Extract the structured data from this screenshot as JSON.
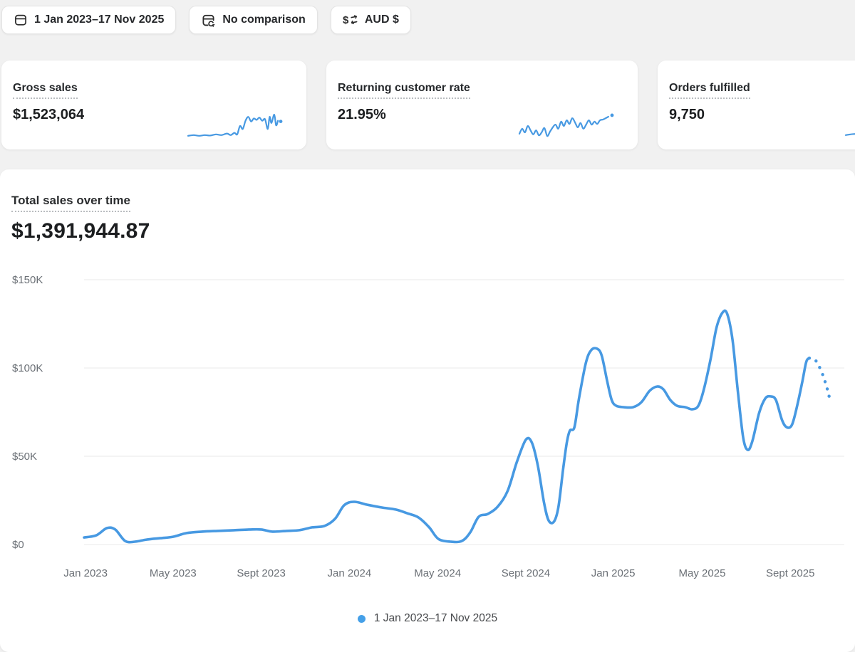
{
  "topbar": {
    "date_range_label": "1 Jan 2023–17 Nov 2025",
    "comparison_label": "No comparison",
    "currency_label": "AUD $",
    "icons": [
      "calendar-icon",
      "comparison-calendar-icon",
      "currency-convert-icon"
    ]
  },
  "metric_cards": [
    {
      "title": "Gross sales",
      "value": "$1,523,064",
      "spark": {
        "color": "#4799E2",
        "points": [
          [
            0.0,
            0.07
          ],
          [
            0.06,
            0.1
          ],
          [
            0.12,
            0.07
          ],
          [
            0.18,
            0.1
          ],
          [
            0.24,
            0.08
          ],
          [
            0.3,
            0.13
          ],
          [
            0.36,
            0.1
          ],
          [
            0.42,
            0.17
          ],
          [
            0.46,
            0.1
          ],
          [
            0.5,
            0.2
          ],
          [
            0.53,
            0.13
          ],
          [
            0.56,
            0.5
          ],
          [
            0.59,
            0.37
          ],
          [
            0.62,
            0.73
          ],
          [
            0.65,
            0.9
          ],
          [
            0.68,
            0.7
          ],
          [
            0.71,
            0.83
          ],
          [
            0.74,
            0.77
          ],
          [
            0.77,
            0.87
          ],
          [
            0.8,
            0.73
          ],
          [
            0.83,
            0.8
          ],
          [
            0.86,
            0.37
          ],
          [
            0.88,
            0.9
          ],
          [
            0.9,
            0.63
          ],
          [
            0.93,
            1.0
          ],
          [
            0.95,
            0.53
          ],
          [
            0.97,
            0.73
          ]
        ],
        "end_dot": [
          1.0,
          0.7
        ]
      }
    },
    {
      "title": "Returning customer rate",
      "value": "21.95%",
      "spark": {
        "color": "#4799E2",
        "points": [
          [
            0.0,
            0.16
          ],
          [
            0.03,
            0.38
          ],
          [
            0.06,
            0.22
          ],
          [
            0.09,
            0.5
          ],
          [
            0.12,
            0.31
          ],
          [
            0.15,
            0.13
          ],
          [
            0.18,
            0.31
          ],
          [
            0.21,
            0.09
          ],
          [
            0.24,
            0.22
          ],
          [
            0.27,
            0.41
          ],
          [
            0.3,
            0.06
          ],
          [
            0.33,
            0.25
          ],
          [
            0.36,
            0.44
          ],
          [
            0.39,
            0.56
          ],
          [
            0.42,
            0.38
          ],
          [
            0.45,
            0.69
          ],
          [
            0.48,
            0.5
          ],
          [
            0.51,
            0.75
          ],
          [
            0.54,
            0.59
          ],
          [
            0.57,
            0.84
          ],
          [
            0.6,
            0.66
          ],
          [
            0.63,
            0.44
          ],
          [
            0.66,
            0.63
          ],
          [
            0.69,
            0.38
          ],
          [
            0.72,
            0.56
          ],
          [
            0.75,
            0.75
          ],
          [
            0.78,
            0.56
          ],
          [
            0.81,
            0.69
          ],
          [
            0.84,
            0.59
          ],
          [
            0.87,
            0.75
          ],
          [
            0.9,
            0.78
          ],
          [
            0.93,
            0.84
          ],
          [
            0.96,
            0.91
          ]
        ],
        "end_dot": [
          1.0,
          0.97
        ]
      }
    },
    {
      "title": "Orders fulfilled",
      "value": "9,750",
      "spark": {
        "color": "#4799E2",
        "points": [
          [
            0.0,
            0.1
          ],
          [
            0.1,
            0.15
          ],
          [
            0.2,
            0.1
          ],
          [
            0.3,
            0.2
          ],
          [
            0.4,
            0.3
          ],
          [
            0.5,
            0.25
          ],
          [
            0.6,
            0.45
          ],
          [
            0.7,
            0.55
          ],
          [
            0.8,
            0.6
          ],
          [
            0.9,
            0.8
          ]
        ],
        "end_dot": [
          1.0,
          0.85
        ]
      }
    }
  ],
  "chart_card": {
    "title": "Total sales over time",
    "value": "$1,391,944.87",
    "legend_label": "1 Jan 2023–17 Nov 2025"
  },
  "chart_data": {
    "type": "line",
    "title": "Total sales over time",
    "total_label": "$1,391,944.87",
    "currency": "AUD $",
    "date_range": "1 Jan 2023–17 Nov 2025",
    "grid": "horizontal-only",
    "legend_position": "bottom-center",
    "ylim_thousands": [
      0,
      150
    ],
    "y_ticks": [
      {
        "label": "$150K",
        "v": 150
      },
      {
        "label": "$100K",
        "v": 100
      },
      {
        "label": "$50K",
        "v": 50
      },
      {
        "label": "$0",
        "v": 0
      }
    ],
    "x_ticks": [
      {
        "label": "Jan 2023",
        "f": 0.002
      },
      {
        "label": "May 2023",
        "f": 0.117
      },
      {
        "label": "Sept 2023",
        "f": 0.233
      },
      {
        "label": "Jan 2024",
        "f": 0.349
      },
      {
        "label": "May 2024",
        "f": 0.465
      },
      {
        "label": "Sept 2024",
        "f": 0.581
      },
      {
        "label": "Jan 2025",
        "f": 0.696
      },
      {
        "label": "May 2025",
        "f": 0.813
      },
      {
        "label": "Sept 2025",
        "f": 0.929
      }
    ],
    "series": [
      {
        "name": "1 Jan 2023–17 Nov 2025",
        "style": "solid",
        "unit": "thousand AUD",
        "points": [
          [
            0.0,
            4.0
          ],
          [
            0.016,
            5.2
          ],
          [
            0.03,
            9.3
          ],
          [
            0.041,
            8.5
          ],
          [
            0.054,
            2.0
          ],
          [
            0.067,
            1.6
          ],
          [
            0.082,
            2.8
          ],
          [
            0.1,
            3.6
          ],
          [
            0.117,
            4.4
          ],
          [
            0.135,
            6.5
          ],
          [
            0.155,
            7.3
          ],
          [
            0.175,
            7.7
          ],
          [
            0.197,
            8.1
          ],
          [
            0.217,
            8.5
          ],
          [
            0.233,
            8.5
          ],
          [
            0.248,
            7.3
          ],
          [
            0.266,
            7.7
          ],
          [
            0.283,
            8.1
          ],
          [
            0.3,
            9.7
          ],
          [
            0.316,
            10.5
          ],
          [
            0.33,
            14.5
          ],
          [
            0.342,
            22.2
          ],
          [
            0.355,
            24.2
          ],
          [
            0.372,
            22.6
          ],
          [
            0.391,
            21.0
          ],
          [
            0.41,
            19.8
          ],
          [
            0.425,
            17.7
          ],
          [
            0.44,
            15.3
          ],
          [
            0.454,
            9.7
          ],
          [
            0.466,
            3.2
          ],
          [
            0.482,
            1.6
          ],
          [
            0.497,
            2.0
          ],
          [
            0.508,
            6.9
          ],
          [
            0.519,
            15.7
          ],
          [
            0.531,
            17.3
          ],
          [
            0.544,
            21.4
          ],
          [
            0.557,
            30.2
          ],
          [
            0.569,
            46.4
          ],
          [
            0.581,
            59.3
          ],
          [
            0.589,
            57.7
          ],
          [
            0.597,
            44.4
          ],
          [
            0.605,
            23.8
          ],
          [
            0.611,
            13.7
          ],
          [
            0.618,
            12.9
          ],
          [
            0.624,
            21.4
          ],
          [
            0.63,
            42.3
          ],
          [
            0.635,
            57.7
          ],
          [
            0.639,
            64.5
          ],
          [
            0.645,
            66.5
          ],
          [
            0.651,
            82.7
          ],
          [
            0.66,
            102.8
          ],
          [
            0.667,
            110.1
          ],
          [
            0.675,
            110.9
          ],
          [
            0.681,
            106.9
          ],
          [
            0.688,
            92.7
          ],
          [
            0.694,
            81.9
          ],
          [
            0.7,
            78.6
          ],
          [
            0.71,
            77.8
          ],
          [
            0.722,
            77.8
          ],
          [
            0.733,
            80.6
          ],
          [
            0.744,
            87.1
          ],
          [
            0.754,
            89.5
          ],
          [
            0.762,
            87.9
          ],
          [
            0.771,
            81.9
          ],
          [
            0.78,
            78.6
          ],
          [
            0.791,
            77.8
          ],
          [
            0.8,
            76.6
          ],
          [
            0.808,
            78.6
          ],
          [
            0.815,
            87.5
          ],
          [
            0.824,
            104.8
          ],
          [
            0.832,
            123.0
          ],
          [
            0.84,
            131.5
          ],
          [
            0.846,
            130.6
          ],
          [
            0.853,
            115.7
          ],
          [
            0.86,
            86.7
          ],
          [
            0.867,
            60.5
          ],
          [
            0.873,
            53.6
          ],
          [
            0.879,
            58.5
          ],
          [
            0.888,
            74.6
          ],
          [
            0.896,
            82.7
          ],
          [
            0.903,
            83.9
          ],
          [
            0.91,
            81.9
          ],
          [
            0.918,
            70.6
          ],
          [
            0.924,
            66.5
          ],
          [
            0.931,
            67.7
          ],
          [
            0.938,
            78.6
          ],
          [
            0.945,
            92.7
          ],
          [
            0.95,
            103.6
          ],
          [
            0.954,
            105.6
          ]
        ]
      },
      {
        "name": "current incomplete period",
        "style": "dotted",
        "unit": "thousand AUD",
        "points": [
          [
            0.954,
            105.6
          ],
          [
            0.961,
            104.8
          ],
          [
            0.966,
            101.6
          ],
          [
            0.971,
            96.8
          ],
          [
            0.975,
            91.9
          ],
          [
            0.978,
            87.5
          ],
          [
            0.98,
            83.9
          ],
          [
            0.983,
            81.5
          ]
        ]
      }
    ],
    "colors": {
      "line": "#4799E2",
      "grid": "#E9E9E9",
      "axis_text": "#6B7076",
      "legend_dot": "#45A0E8"
    }
  }
}
